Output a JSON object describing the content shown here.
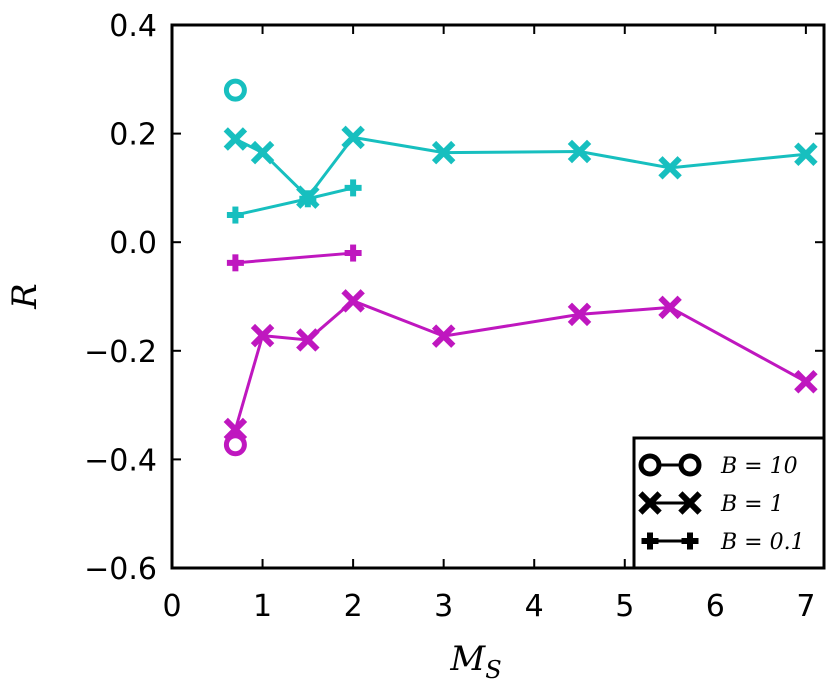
{
  "chart_data": {
    "type": "line",
    "title": "",
    "xlabel": "M",
    "xlabel_sub": "S",
    "ylabel": "R",
    "xlim": [
      0,
      7.2
    ],
    "ylim": [
      -0.6,
      0.4
    ],
    "xticks": [
      0,
      1,
      2,
      3,
      4,
      5,
      6,
      7
    ],
    "xtick_labels": [
      "0",
      "1",
      "2",
      "3",
      "4",
      "5",
      "6",
      "7"
    ],
    "yticks": [
      0.4,
      0.2,
      0.0,
      -0.2,
      -0.4,
      -0.6
    ],
    "ytick_labels": [
      "0.4",
      "0.2",
      "0.0",
      "−0.2",
      "−0.4",
      "−0.6"
    ],
    "grid": false,
    "legend_position": "bottom-right",
    "legend": [
      {
        "label": "B = 10",
        "marker": "circle"
      },
      {
        "label": "B = 1",
        "marker": "x"
      },
      {
        "label": "B = 0.1",
        "marker": "plus"
      }
    ],
    "series": [
      {
        "name": "cyan B=10",
        "color": "#17bfbf",
        "marker": "circle",
        "x": [
          0.7
        ],
        "y": [
          0.28
        ]
      },
      {
        "name": "cyan B=1",
        "color": "#17bfbf",
        "marker": "x",
        "x": [
          0.7,
          1.0,
          1.5,
          2.0,
          3.0,
          4.5,
          5.5,
          7.0
        ],
        "y": [
          0.19,
          0.165,
          0.083,
          0.193,
          0.165,
          0.167,
          0.137,
          0.162
        ]
      },
      {
        "name": "cyan B=0.1",
        "color": "#17bfbf",
        "marker": "plus",
        "x": [
          0.7,
          1.5,
          2.0
        ],
        "y": [
          0.05,
          0.08,
          0.1
        ]
      },
      {
        "name": "magenta B=0.1",
        "color": "#bf17bf",
        "marker": "plus",
        "x": [
          0.7,
          2.0
        ],
        "y": [
          -0.038,
          -0.02
        ]
      },
      {
        "name": "magenta B=1",
        "color": "#bf17bf",
        "marker": "x",
        "x": [
          0.7,
          1.0,
          1.5,
          2.0,
          3.0,
          4.5,
          5.5,
          7.0
        ],
        "y": [
          -0.345,
          -0.172,
          -0.18,
          -0.108,
          -0.173,
          -0.133,
          -0.12,
          -0.257
        ]
      },
      {
        "name": "magenta B=10",
        "color": "#bf17bf",
        "marker": "circle",
        "x": [
          0.7
        ],
        "y": [
          -0.373
        ]
      }
    ]
  }
}
